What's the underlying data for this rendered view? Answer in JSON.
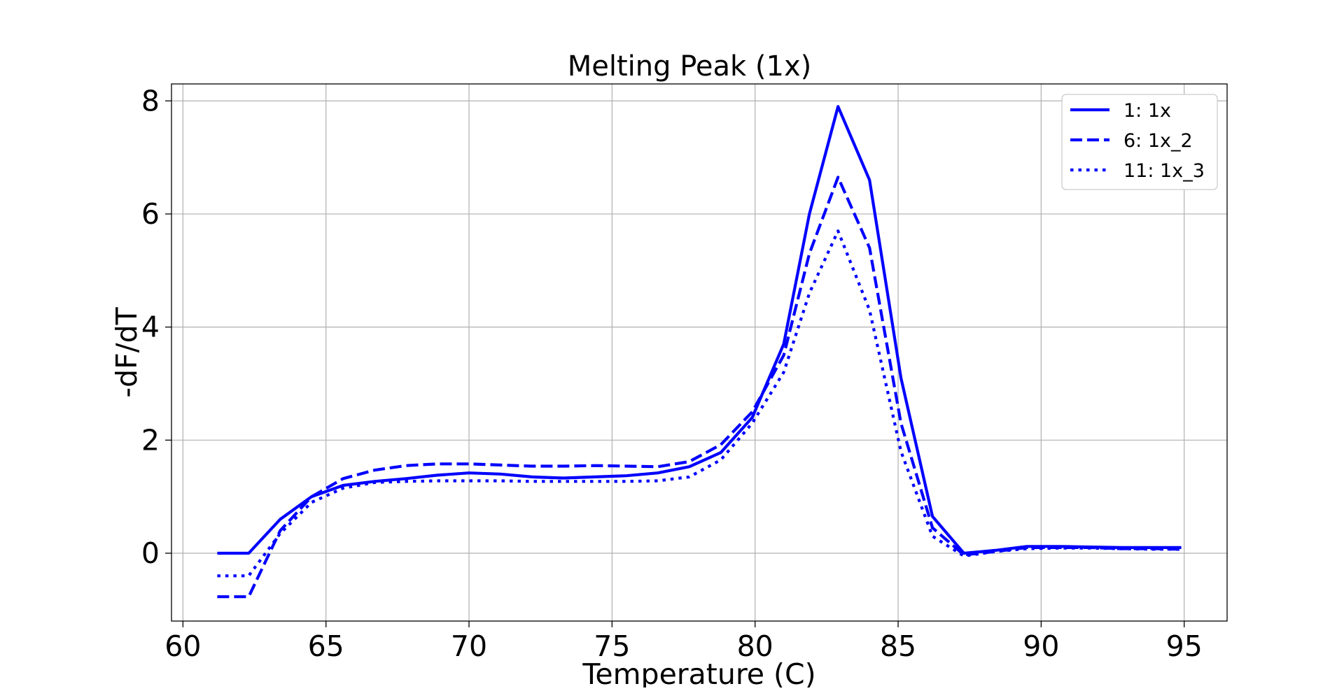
{
  "chart_data": {
    "type": "line",
    "title": "Melting Peak (1x)",
    "xlabel": "Temperature (C)",
    "ylabel": "-dF/dT",
    "xlim": [
      59.6,
      96.5
    ],
    "ylim": [
      -1.2,
      8.3
    ],
    "x_ticks": [
      60,
      65,
      70,
      75,
      80,
      85,
      90,
      95
    ],
    "y_ticks": [
      0,
      2,
      4,
      6,
      8
    ],
    "x_tick_labels": [
      "60",
      "65",
      "70",
      "75",
      "80",
      "85",
      "90",
      "95"
    ],
    "y_tick_labels": [
      "0",
      "2",
      "4",
      "6",
      "8"
    ],
    "grid": true,
    "legend_position": "top-right",
    "color": "#0000ff",
    "x": [
      61.2,
      62.3,
      63.4,
      64.5,
      65.6,
      66.7,
      67.8,
      68.9,
      70.0,
      71.1,
      72.2,
      73.3,
      74.4,
      75.5,
      76.6,
      77.7,
      78.8,
      79.9,
      81.0,
      81.9,
      82.9,
      84.0,
      85.1,
      86.2,
      87.3,
      88.4,
      89.5,
      90.6,
      91.7,
      92.8,
      93.9,
      94.9
    ],
    "series": [
      {
        "name": "1: 1x",
        "style": "solid",
        "values": [
          0.0,
          0.0,
          0.6,
          1.0,
          1.2,
          1.27,
          1.32,
          1.38,
          1.42,
          1.4,
          1.35,
          1.33,
          1.35,
          1.37,
          1.42,
          1.53,
          1.78,
          2.4,
          3.7,
          6.0,
          7.9,
          6.6,
          3.1,
          0.65,
          0.0,
          0.05,
          0.12,
          0.12,
          0.11,
          0.1,
          0.1,
          0.1
        ]
      },
      {
        "name": "6: 1x_2",
        "style": "dashed",
        "values": [
          -0.77,
          -0.77,
          0.4,
          1.0,
          1.32,
          1.47,
          1.55,
          1.58,
          1.58,
          1.56,
          1.54,
          1.54,
          1.55,
          1.54,
          1.53,
          1.62,
          1.92,
          2.5,
          3.5,
          5.3,
          6.65,
          5.4,
          2.3,
          0.45,
          -0.03,
          0.03,
          0.1,
          0.1,
          0.1,
          0.08,
          0.08,
          0.07
        ]
      },
      {
        "name": "11: 1x_3",
        "style": "dotted",
        "values": [
          -0.4,
          -0.4,
          0.35,
          0.9,
          1.15,
          1.25,
          1.27,
          1.28,
          1.28,
          1.28,
          1.27,
          1.27,
          1.27,
          1.27,
          1.28,
          1.35,
          1.65,
          2.3,
          3.2,
          4.6,
          5.7,
          4.3,
          1.8,
          0.3,
          -0.05,
          0.03,
          0.08,
          0.09,
          0.09,
          0.08,
          0.07,
          0.07
        ]
      }
    ]
  }
}
